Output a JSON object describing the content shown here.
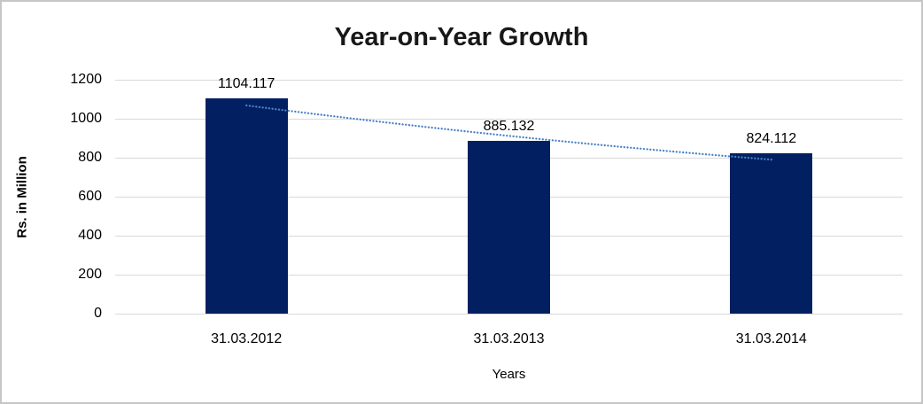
{
  "window": {
    "background_color": "#ffffff",
    "border_color": "#c6c6c6"
  },
  "chart_data": {
    "type": "bar",
    "title": "Year-on-Year Growth",
    "xlabel": "Years",
    "ylabel": "Rs. in Million",
    "categories": [
      "31.03.2012",
      "31.03.2013",
      "31.03.2014"
    ],
    "values": [
      1104.117,
      885.132,
      824.112
    ],
    "data_labels": [
      "1104.117",
      "885.132",
      "824.112"
    ],
    "yticks": [
      0,
      200,
      400,
      600,
      800,
      1000,
      1200
    ],
    "ytick_labels": [
      "0",
      "200",
      "400",
      "600",
      "800",
      "1000",
      "1200"
    ],
    "ylim": [
      0,
      1200
    ],
    "grid": "horizontal",
    "legend": "none",
    "colors": {
      "bar": "#022061",
      "gridline": "#d9d9d9",
      "title_text": "#181818",
      "label_text": "#000000",
      "trendline": "#4a82c6"
    },
    "trendline": {
      "style": "dotted",
      "color": "#4a82c6",
      "approx_values": [
        1068,
        912,
        790
      ]
    }
  }
}
